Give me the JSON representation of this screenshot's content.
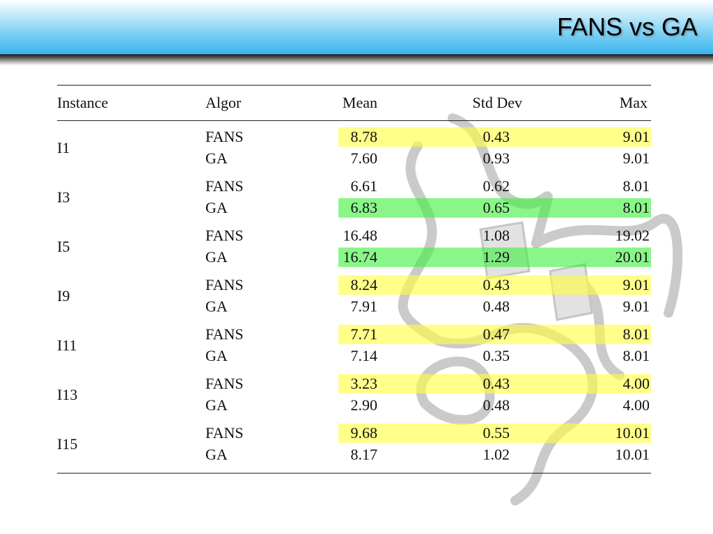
{
  "slide": {
    "title": "FANS vs GA"
  },
  "colors": {
    "highlight_fans_better": "#ffff3c",
    "highlight_ga_better": "#3cf03c",
    "header_blue": "#39b4ee"
  },
  "watermark": {
    "icon": "protein-ribbon-structure"
  },
  "table": {
    "headers": {
      "instance": "Instance",
      "algor": "Algor",
      "mean": "Mean",
      "std": "Std Dev",
      "max": "Max"
    },
    "groups": [
      {
        "instance": "I1",
        "rows": [
          {
            "algor": "FANS",
            "mean": "8.78",
            "std": "0.43",
            "max": "9.01",
            "highlight": "yellow"
          },
          {
            "algor": "GA",
            "mean": "7.60",
            "std": "0.93",
            "max": "9.01",
            "highlight": "none"
          }
        ]
      },
      {
        "instance": "I3",
        "rows": [
          {
            "algor": "FANS",
            "mean": "6.61",
            "std": "0.62",
            "max": "8.01",
            "highlight": "none"
          },
          {
            "algor": "GA",
            "mean": "6.83",
            "std": "0.65",
            "max": "8.01",
            "highlight": "green"
          }
        ]
      },
      {
        "instance": "I5",
        "rows": [
          {
            "algor": "FANS",
            "mean": "16.48",
            "std": "1.08",
            "max": "19.02",
            "highlight": "none"
          },
          {
            "algor": "GA",
            "mean": "16.74",
            "std": "1.29",
            "max": "20.01",
            "highlight": "green"
          }
        ]
      },
      {
        "instance": "I9",
        "rows": [
          {
            "algor": "FANS",
            "mean": "8.24",
            "std": "0.43",
            "max": "9.01",
            "highlight": "yellow"
          },
          {
            "algor": "GA",
            "mean": "7.91",
            "std": "0.48",
            "max": "9.01",
            "highlight": "none"
          }
        ]
      },
      {
        "instance": "I11",
        "rows": [
          {
            "algor": "FANS",
            "mean": "7.71",
            "std": "0.47",
            "max": "8.01",
            "highlight": "yellow"
          },
          {
            "algor": "GA",
            "mean": "7.14",
            "std": "0.35",
            "max": "8.01",
            "highlight": "none"
          }
        ]
      },
      {
        "instance": "I13",
        "rows": [
          {
            "algor": "FANS",
            "mean": "3.23",
            "std": "0.43",
            "max": "4.00",
            "highlight": "yellow"
          },
          {
            "algor": "GA",
            "mean": "2.90",
            "std": "0.48",
            "max": "4.00",
            "highlight": "none"
          }
        ]
      },
      {
        "instance": "I15",
        "rows": [
          {
            "algor": "FANS",
            "mean": "9.68",
            "std": "0.55",
            "max": "10.01",
            "highlight": "yellow"
          },
          {
            "algor": "GA",
            "mean": "8.17",
            "std": "1.02",
            "max": "10.01",
            "highlight": "none"
          }
        ]
      }
    ]
  }
}
